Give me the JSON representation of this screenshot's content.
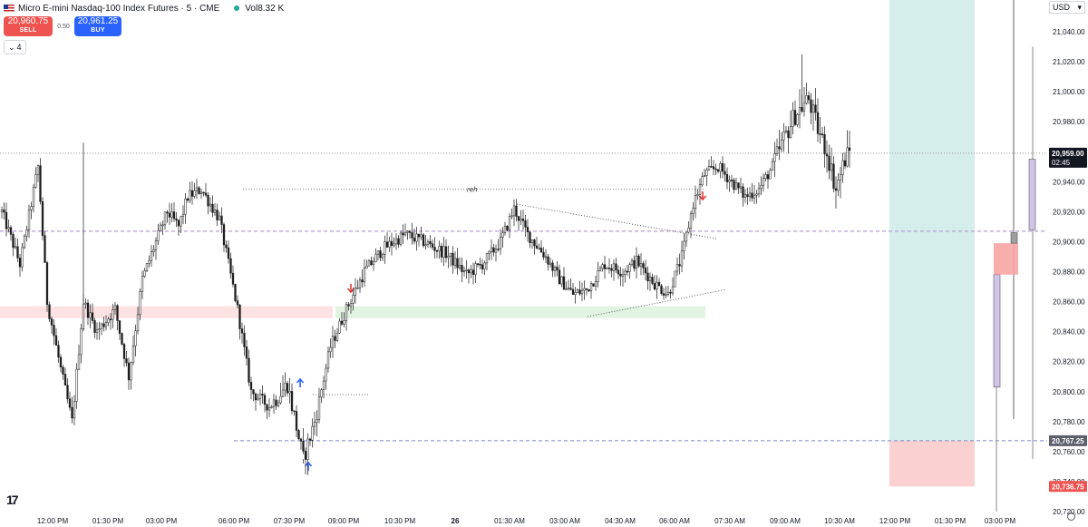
{
  "header": {
    "symbol_title": "Micro E-mini Nasdaq-100 Index Futures · 5 · CME",
    "volume_label": "Vol",
    "volume_value": "8.32 K"
  },
  "trade": {
    "sell_price": "20,960.75",
    "sell_label": "SELL",
    "spread": "0.50",
    "buy_price": "20,961.25",
    "buy_label": "BUY"
  },
  "indicators_toggle": {
    "count": "4"
  },
  "currency": "USD",
  "colors": {
    "bull": "#ffffff",
    "bear": "#1a1a1a",
    "wick": "#333333",
    "target_zone": "#b2dfdb",
    "stop_zone": "#fbd0d0",
    "accent": "#2962ff",
    "sell": "#ef5350",
    "red_arrow": "#e53935",
    "blue_arrow": "#2962ff",
    "profile_bar": "#d1c4e9"
  },
  "chart_data": {
    "type": "candlestick",
    "ylim": [
      20712,
      21065
    ],
    "y_ticks": [
      "21,040.00",
      "21,020.00",
      "21,000.00",
      "20,980.00",
      "20,960.00",
      "20,940.00",
      "20,920.00",
      "20,900.00",
      "20,880.00",
      "20,860.00",
      "20,840.00",
      "20,820.00",
      "20,800.00",
      "20,780.00",
      "20,760.00",
      "20,740.00",
      "20,720.00"
    ],
    "x_ticks": [
      "12:00 PM",
      "01:30 PM",
      "03:00 PM",
      "06:00 PM",
      "07:30 PM",
      "09:00 PM",
      "10:30 PM",
      "26",
      "01:30 AM",
      "03:00 AM",
      "04:30 AM",
      "06:00 AM",
      "07:30 AM",
      "09:00 AM",
      "10:30 AM",
      "12:00 PM",
      "01:30 PM",
      "03:00 PM"
    ],
    "key_points": [
      [
        0,
        20920
      ],
      [
        8,
        20885
      ],
      [
        16,
        20950
      ],
      [
        20,
        20860
      ],
      [
        26,
        20815
      ],
      [
        31,
        20780
      ],
      [
        36,
        20860
      ],
      [
        42,
        20840
      ],
      [
        50,
        20855
      ],
      [
        56,
        20810
      ],
      [
        62,
        20875
      ],
      [
        68,
        20900
      ],
      [
        73,
        20920
      ],
      [
        78,
        20910
      ],
      [
        82,
        20930
      ],
      [
        88,
        20935
      ],
      [
        96,
        20915
      ],
      [
        104,
        20855
      ],
      [
        110,
        20800
      ],
      [
        118,
        20790
      ],
      [
        126,
        20805
      ],
      [
        133,
        20755
      ],
      [
        138,
        20780
      ],
      [
        145,
        20830
      ],
      [
        152,
        20855
      ],
      [
        160,
        20880
      ],
      [
        168,
        20895
      ],
      [
        178,
        20905
      ],
      [
        186,
        20900
      ],
      [
        196,
        20892
      ],
      [
        205,
        20878
      ],
      [
        212,
        20885
      ],
      [
        220,
        20900
      ],
      [
        226,
        20922
      ],
      [
        232,
        20905
      ],
      [
        240,
        20890
      ],
      [
        246,
        20875
      ],
      [
        252,
        20865
      ],
      [
        258,
        20868
      ],
      [
        266,
        20885
      ],
      [
        274,
        20880
      ],
      [
        280,
        20887
      ],
      [
        288,
        20872
      ],
      [
        294,
        20865
      ],
      [
        300,
        20890
      ],
      [
        305,
        20925
      ],
      [
        310,
        20945
      ],
      [
        316,
        20950
      ],
      [
        322,
        20940
      ],
      [
        328,
        20930
      ],
      [
        334,
        20935
      ],
      [
        340,
        20950
      ],
      [
        344,
        20965
      ],
      [
        350,
        20985
      ],
      [
        356,
        20995
      ],
      [
        360,
        20975
      ],
      [
        364,
        20960
      ],
      [
        368,
        20935
      ],
      [
        372,
        20955
      ],
      [
        374,
        20960
      ]
    ],
    "annotations": {
      "equal_highs_label": "reh",
      "sell_arrows": 2,
      "buy_arrows": 2
    },
    "levels": [
      {
        "price": 20907,
        "style": "dashed",
        "color": "#b39ddb"
      },
      {
        "price": 20767.25,
        "style": "dashed",
        "color": "#7986cb",
        "label": "20,767.25"
      },
      {
        "price": 21063,
        "style": "dashed",
        "color": "#7986cb"
      },
      {
        "price": 20935,
        "style": "dotted",
        "label": "reh"
      }
    ],
    "last_price": {
      "value": "20,959.00",
      "countdown": "02:45",
      "bg": "#131722"
    },
    "stop_price": {
      "value": "20,736.75",
      "bg": "#ef5350"
    },
    "level_price_badge": {
      "value": "20,767.25",
      "bg": "#5d606b"
    },
    "position": {
      "entry": 20767.25,
      "stop": 20736.75,
      "target": 21063
    },
    "range_box": {
      "top": 20899,
      "bottom": 20878
    }
  }
}
